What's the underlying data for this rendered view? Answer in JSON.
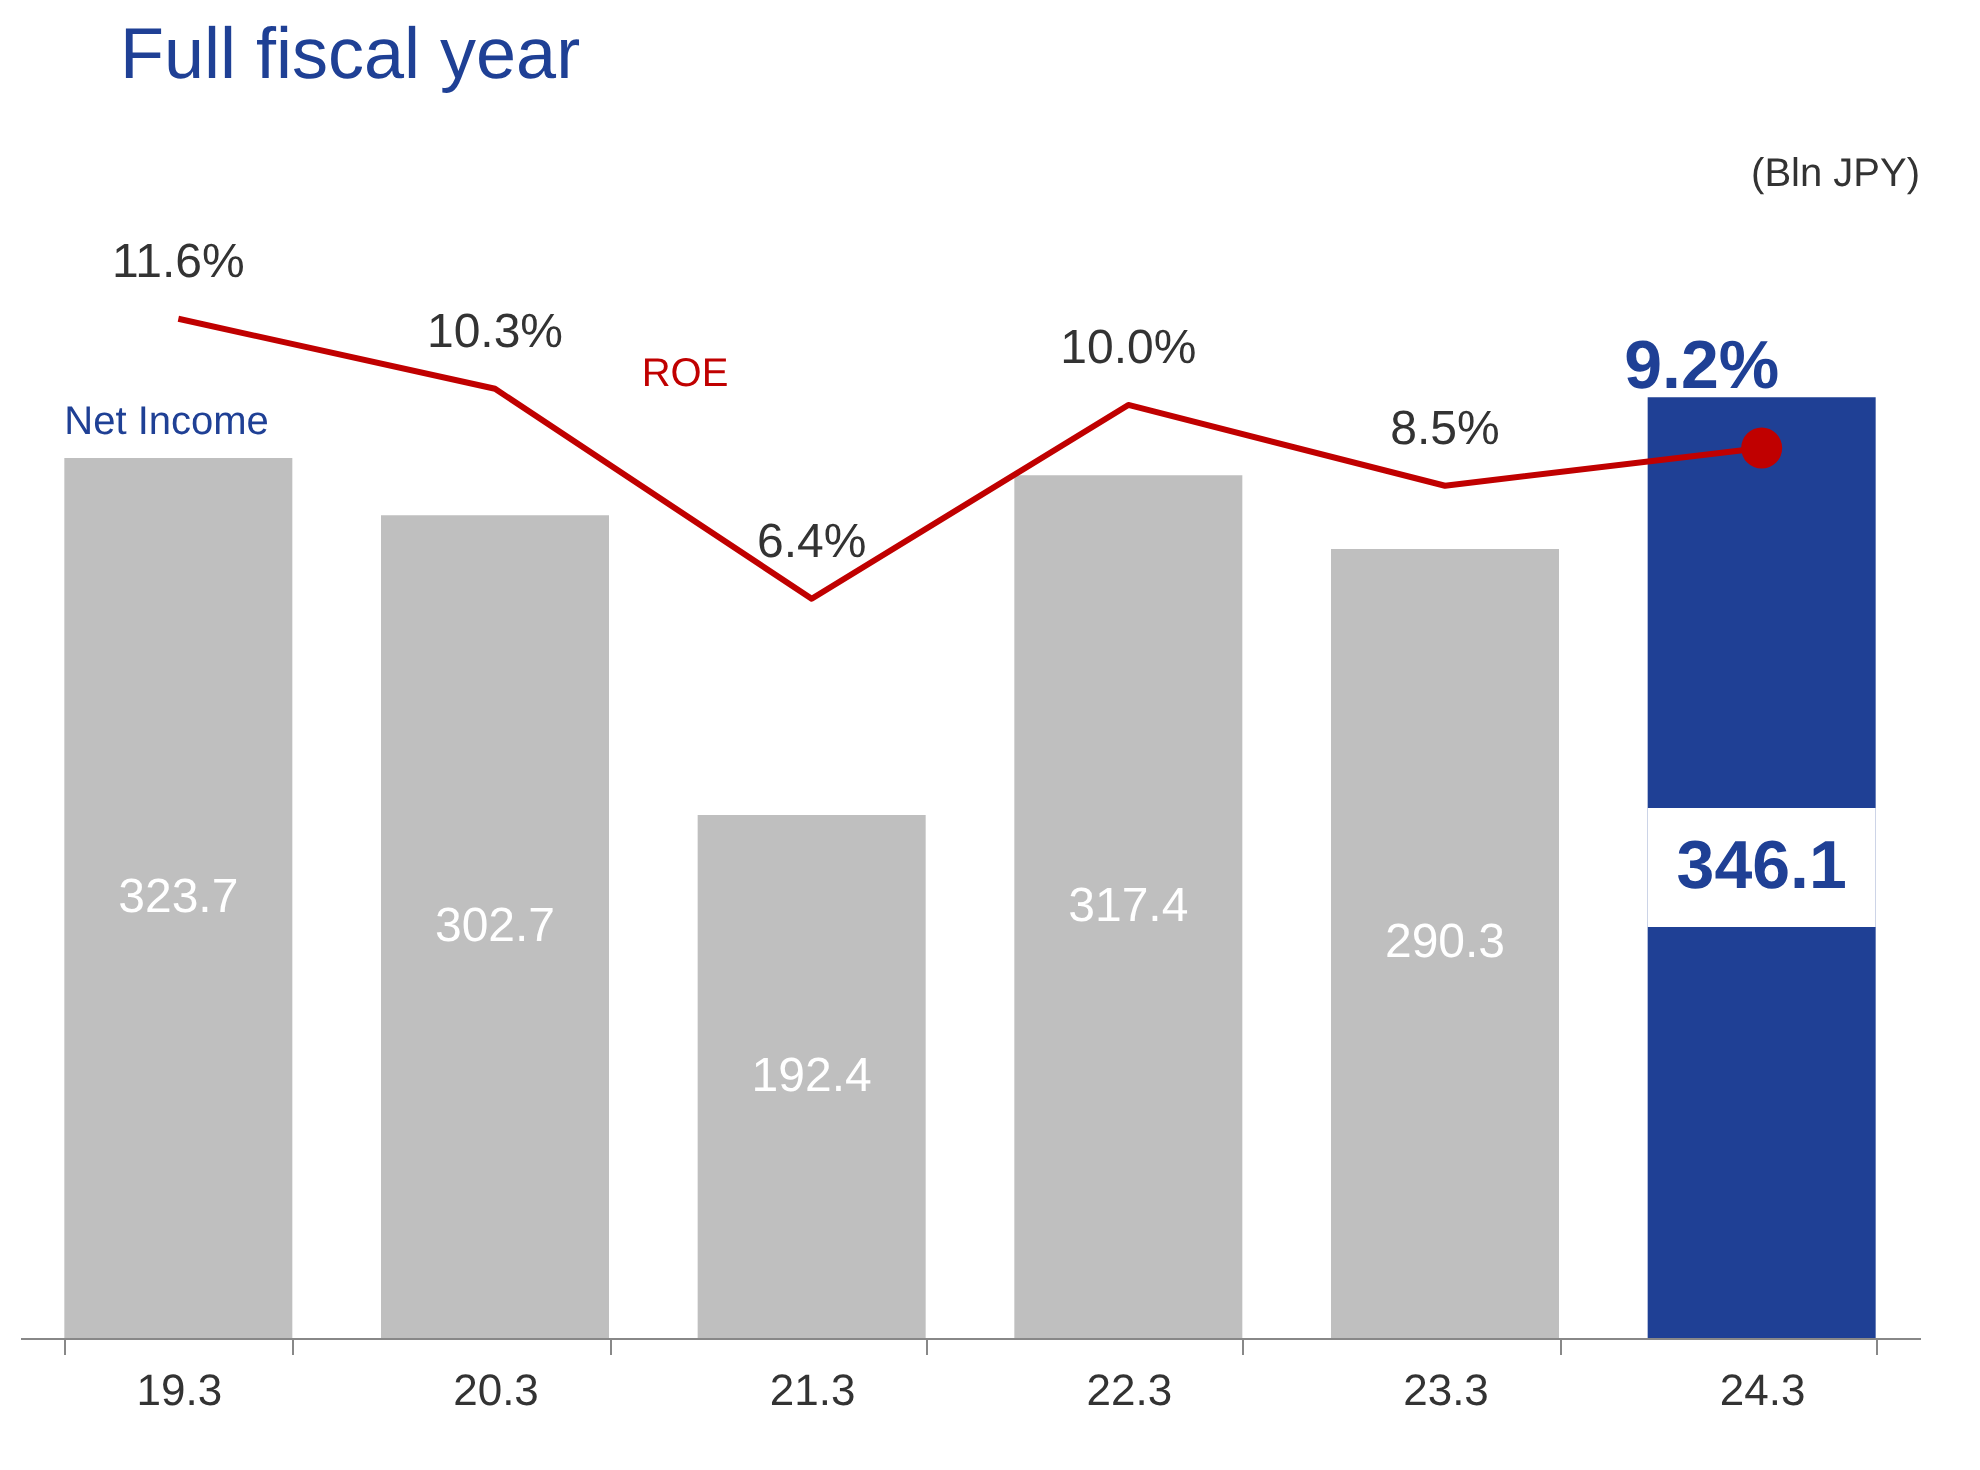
{
  "chart_data": {
    "type": "bar",
    "title": "Full fiscal year",
    "categories": [
      "19.3",
      "20.3",
      "21.3",
      "22.3",
      "23.3",
      "24.3"
    ],
    "series": [
      {
        "name": "Net Income",
        "colors": [
          "#bfbfbf",
          "#bfbfbf",
          "#bfbfbf",
          "#bfbfbf",
          "#bfbfbf",
          "#1f4095"
        ],
        "values": [
          323.7,
          302.7,
          192.4,
          317.4,
          290.3,
          346.1
        ]
      },
      {
        "name": "ROE",
        "type": "line",
        "axis": "y2",
        "color": "#c00000",
        "values": [
          11.6,
          10.3,
          6.4,
          10.0,
          8.5,
          9.2
        ],
        "value_labels": [
          "11.6%",
          "10.3%",
          "6.4%",
          "10.0%",
          "8.5%",
          "9.2%"
        ]
      }
    ],
    "data_labels": true,
    "annotations": [
      "(Bln JPY)"
    ]
  }
}
